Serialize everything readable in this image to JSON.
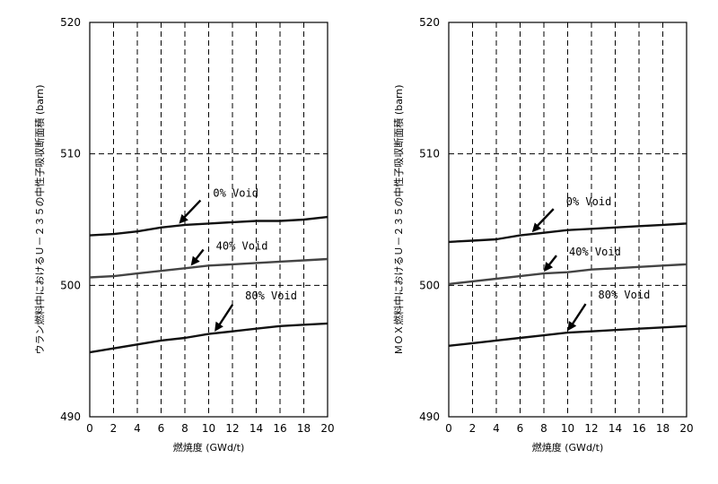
{
  "chart_data": [
    {
      "type": "line",
      "ylabel": "ウラン燃料中におけるＵ－２３５の中性子吸収断面積 (barn)",
      "xlabel": "燃焼度 (GWd/t)",
      "xlim": [
        0,
        20
      ],
      "ylim": [
        490,
        520
      ],
      "x_ticks": [
        "0",
        "2",
        "4",
        "6",
        "8",
        "10",
        "12",
        "14",
        "16",
        "18",
        "20"
      ],
      "y_ticks": [
        "490",
        "500",
        "510",
        "520"
      ],
      "grid": true,
      "x": [
        0,
        2,
        4,
        6,
        8,
        10,
        12,
        14,
        16,
        18,
        20
      ],
      "series": [
        {
          "name": "0% Void",
          "color": "#111111",
          "values": [
            503.8,
            503.9,
            504.1,
            504.4,
            504.6,
            504.7,
            504.8,
            504.9,
            504.9,
            505.0,
            505.2
          ]
        },
        {
          "name": "40% Void",
          "color": "#444444",
          "values": [
            500.6,
            500.7,
            500.9,
            501.1,
            501.3,
            501.5,
            501.6,
            501.7,
            501.8,
            501.9,
            502.0
          ]
        },
        {
          "name": "80% Void",
          "color": "#111111",
          "values": [
            494.9,
            495.2,
            495.5,
            495.8,
            496.0,
            496.3,
            496.5,
            496.7,
            496.9,
            497.0,
            497.1
          ]
        }
      ],
      "annotations": [
        {
          "text": "0% Void",
          "series": 0,
          "at_x": 7.5
        },
        {
          "text": "40% Void",
          "series": 1,
          "at_x": 8.5
        },
        {
          "text": "80% Void",
          "series": 2,
          "at_x": 10.5
        }
      ]
    },
    {
      "type": "line",
      "ylabel": "ＭＯＸ燃料中におけるＵ－２３５の中性子吸収断面積 (barn)",
      "xlabel": "燃焼度 (GWd/t)",
      "xlim": [
        0,
        20
      ],
      "ylim": [
        490,
        520
      ],
      "x_ticks": [
        "0",
        "2",
        "4",
        "6",
        "8",
        "10",
        "12",
        "14",
        "16",
        "18",
        "20"
      ],
      "y_ticks": [
        "490",
        "500",
        "510",
        "520"
      ],
      "grid": true,
      "x": [
        0,
        2,
        4,
        6,
        8,
        10,
        12,
        14,
        16,
        18,
        20
      ],
      "series": [
        {
          "name": "0% Void",
          "color": "#111111",
          "values": [
            503.3,
            503.4,
            503.5,
            503.8,
            504.0,
            504.2,
            504.3,
            504.4,
            504.5,
            504.6,
            504.7
          ]
        },
        {
          "name": "40% Void",
          "color": "#444444",
          "values": [
            500.1,
            500.3,
            500.5,
            500.7,
            500.9,
            501.0,
            501.2,
            501.3,
            501.4,
            501.5,
            501.6
          ]
        },
        {
          "name": "80% Void",
          "color": "#111111",
          "values": [
            495.4,
            495.6,
            495.8,
            496.0,
            496.2,
            496.4,
            496.5,
            496.6,
            496.7,
            496.8,
            496.9
          ]
        }
      ],
      "annotations": [
        {
          "text": "0% Void",
          "series": 0,
          "at_x": 7.0
        },
        {
          "text": "40% Void",
          "series": 1,
          "at_x": 8.0
        },
        {
          "text": "80% Void",
          "series": 2,
          "at_x": 10.0
        }
      ]
    }
  ]
}
